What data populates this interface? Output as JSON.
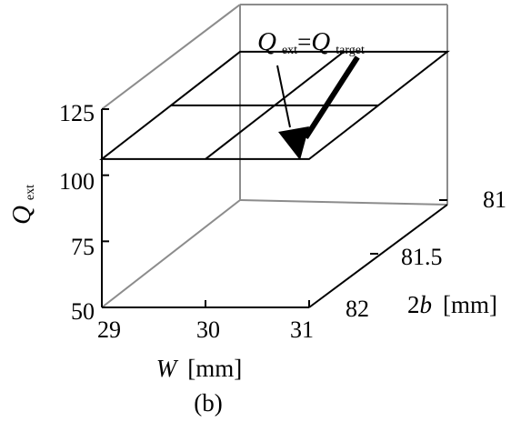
{
  "chart_data": {
    "type": "surface",
    "caption": "(b)",
    "annotation": {
      "q_main": "Q",
      "sub1": "ext",
      "eq": "=",
      "q_second": "Q",
      "sub2": "target"
    },
    "axes": {
      "w": {
        "var": "W",
        "unit": "[mm]",
        "ticks": [
          "29",
          "30",
          "31"
        ],
        "range": [
          29,
          31
        ]
      },
      "b": {
        "var": "2b",
        "var_prefix": "2",
        "var_italic": "b",
        "unit": "[mm]",
        "ticks": [
          "81",
          "81.5",
          "82"
        ],
        "range": [
          81,
          82
        ]
      },
      "q": {
        "var": "Q",
        "sub": "ext",
        "ticks": [
          "125",
          "100",
          "75",
          "50"
        ],
        "range": [
          50,
          125
        ]
      }
    },
    "surface_corners": [
      {
        "w": 29,
        "two_b": 81,
        "q_ext": 106.1
      },
      {
        "w": 31,
        "two_b": 81,
        "q_ext": 106.1
      },
      {
        "w": 31,
        "two_b": 82,
        "q_ext": 106.1
      },
      {
        "w": 29,
        "two_b": 82,
        "q_ext": 106.1
      }
    ],
    "target_line": [
      {
        "w": 30.7,
        "two_b": 81.8,
        "q_ext": 106.1
      },
      {
        "w": 30.2,
        "two_b": 81.05,
        "q_ext": 106.1
      }
    ]
  }
}
